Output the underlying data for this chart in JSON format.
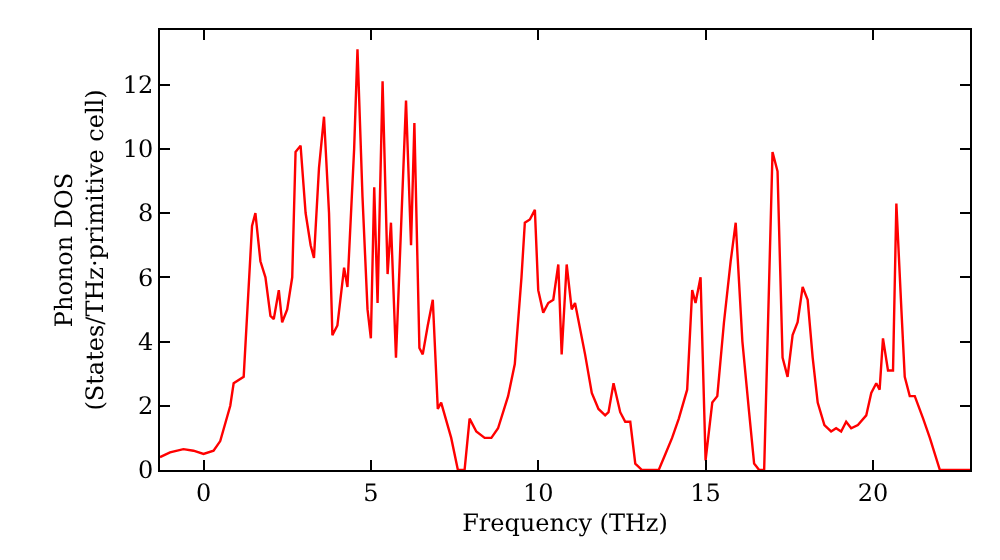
{
  "chart_data": {
    "type": "line",
    "xlabel": "Frequency (THz)",
    "ylabel": "Phonon DOS\n(States/THz·primitive cell)",
    "xlim": [
      -1.3,
      22.9
    ],
    "ylim": [
      0,
      13.7
    ],
    "xticks": [
      0,
      5,
      10,
      15,
      20
    ],
    "yticks": [
      0,
      2,
      4,
      6,
      8,
      10,
      12
    ],
    "marker": "none",
    "line_style": "solid",
    "series": [
      {
        "color": "#ff0000",
        "x": [
          -1.3,
          -1,
          -0.6,
          -0.3,
          0,
          0.3,
          0.5,
          0.8,
          0.9,
          1.2,
          1.45,
          1.55,
          1.7,
          1.85,
          2.0,
          2.1,
          2.25,
          2.35,
          2.5,
          2.65,
          2.75,
          2.9,
          3.05,
          3.2,
          3.3,
          3.45,
          3.6,
          3.75,
          3.85,
          4.0,
          4.2,
          4.3,
          4.5,
          4.6,
          4.75,
          4.9,
          5.0,
          5.1,
          5.2,
          5.35,
          5.5,
          5.6,
          5.75,
          5.9,
          6.05,
          6.2,
          6.3,
          6.45,
          6.55,
          6.7,
          6.85,
          7.0,
          7.1,
          7.4,
          7.6,
          7.8,
          7.95,
          8.15,
          8.4,
          8.6,
          8.8,
          9.1,
          9.3,
          9.5,
          9.6,
          9.75,
          9.9,
          10.0,
          10.15,
          10.3,
          10.45,
          10.6,
          10.7,
          10.85,
          11.0,
          11.1,
          11.4,
          11.6,
          11.8,
          12.0,
          12.1,
          12.25,
          12.45,
          12.6,
          12.75,
          12.9,
          13.1,
          13.6,
          13.8,
          14.0,
          14.2,
          14.45,
          14.6,
          14.7,
          14.85,
          15.0,
          15.2,
          15.35,
          15.55,
          15.75,
          15.9,
          16.1,
          16.3,
          16.45,
          16.6,
          16.75,
          17.0,
          17.15,
          17.3,
          17.45,
          17.6,
          17.75,
          17.9,
          18.05,
          18.2,
          18.35,
          18.55,
          18.75,
          18.9,
          19.05,
          19.2,
          19.35,
          19.55,
          19.8,
          19.95,
          20.1,
          20.2,
          20.3,
          20.45,
          20.6,
          20.7,
          20.85,
          20.95,
          21.1,
          21.25,
          21.5,
          21.7,
          22.0,
          22.9
        ],
        "values": [
          0.4,
          0.55,
          0.65,
          0.6,
          0.5,
          0.6,
          0.9,
          2,
          2.7,
          2.9,
          7.6,
          8.0,
          6.5,
          6.0,
          4.8,
          4.7,
          5.6,
          4.6,
          5.0,
          6.0,
          9.9,
          10.1,
          8.0,
          7.0,
          6.6,
          9.4,
          11.0,
          8.0,
          4.2,
          4.5,
          6.3,
          5.7,
          10.0,
          13.1,
          8.5,
          5.0,
          4.1,
          8.8,
          5.2,
          12.1,
          6.1,
          7.7,
          3.5,
          7.5,
          11.5,
          7.0,
          10.8,
          3.8,
          3.6,
          4.5,
          5.3,
          1.9,
          2.1,
          1.0,
          0,
          0,
          1.6,
          1.2,
          1.0,
          1.0,
          1.3,
          2.3,
          3.3,
          6.0,
          7.7,
          7.8,
          8.1,
          5.6,
          4.9,
          5.2,
          5.3,
          6.4,
          3.6,
          6.4,
          5.0,
          5.2,
          3.6,
          2.4,
          1.9,
          1.7,
          1.8,
          2.7,
          1.8,
          1.5,
          1.5,
          0.2,
          0,
          0,
          0.5,
          1.0,
          1.6,
          2.5,
          5.6,
          5.2,
          6.0,
          0.3,
          2.1,
          2.3,
          4.6,
          6.5,
          7.7,
          4.0,
          1.8,
          0.2,
          0,
          0,
          9.9,
          9.3,
          3.5,
          2.9,
          4.2,
          4.6,
          5.7,
          5.3,
          3.5,
          2.1,
          1.4,
          1.2,
          1.3,
          1.2,
          1.5,
          1.3,
          1.4,
          1.7,
          2.4,
          2.7,
          2.5,
          4.1,
          3.1,
          3.1,
          8.3,
          5.0,
          2.9,
          2.3,
          2.3,
          1.6,
          1.0,
          0,
          0
        ]
      }
    ]
  }
}
